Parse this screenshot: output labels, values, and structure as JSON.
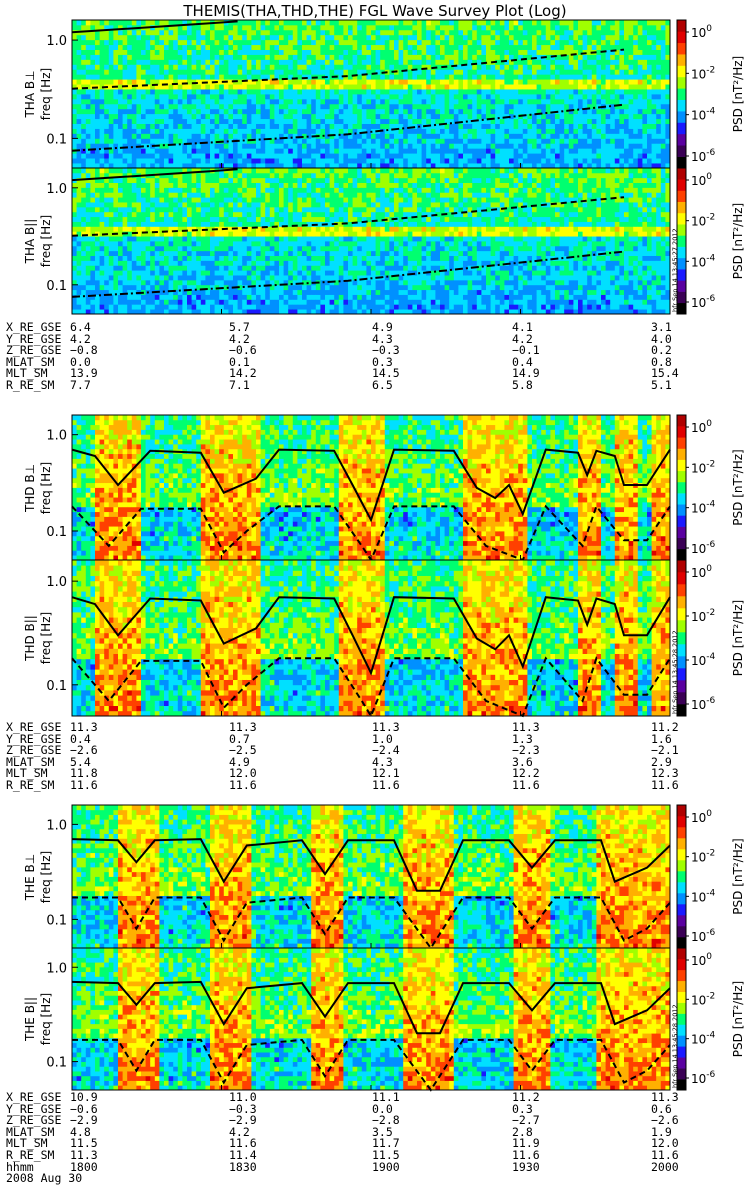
{
  "title": "THEMIS(THA,THD,THE) FGL Wave Survey Plot (Log)",
  "panels": [
    {
      "ylabel": "THA B⊥",
      "unit": "freq [Hz]",
      "probe": "THA",
      "kind": "perp"
    },
    {
      "ylabel": "THA B||",
      "unit": "freq [Hz]",
      "probe": "THA",
      "kind": "par"
    },
    {
      "ylabel": "THD B⊥",
      "unit": "freq [Hz]",
      "probe": "THD",
      "kind": "perp"
    },
    {
      "ylabel": "THD B||",
      "unit": "freq [Hz]",
      "probe": "THD",
      "kind": "par"
    },
    {
      "ylabel": "THE B⊥",
      "unit": "freq [Hz]",
      "probe": "THE",
      "kind": "perp"
    },
    {
      "ylabel": "THE B||",
      "unit": "freq [Hz]",
      "probe": "THE",
      "kind": "par"
    }
  ],
  "y_ticks": [
    "1.0",
    "0.1"
  ],
  "colorbar": {
    "label": "PSD [nT²/Hz]",
    "ticks": [
      "10⁰",
      "10⁻²",
      "10⁻⁴",
      "10⁻⁶"
    ],
    "colors": [
      "#000000",
      "#3a0055",
      "#5a00a0",
      "#1a1aff",
      "#0090ff",
      "#00e0ff",
      "#00ff70",
      "#a0ff00",
      "#ffff00",
      "#ffb000",
      "#ff4000",
      "#e00000",
      "#b00000"
    ]
  },
  "stamps": [
    "hfr Sep 14 13:45:27 2012",
    "hfr Sep 14 13:45:28 2012",
    "hfr Sep 14 13:45:28 2012"
  ],
  "ephemeris": [
    {
      "labels": [
        "X_RE_GSE",
        "Y_RE_GSE",
        "Z_RE_GSE",
        "MLAT_SM",
        "MLT_SM",
        "R_RE_SM"
      ],
      "values": [
        [
          "6.4",
          "5.7",
          "4.9",
          "4.1",
          "3.1"
        ],
        [
          "4.2",
          "4.2",
          "4.3",
          "4.2",
          "4.0"
        ],
        [
          "−0.8",
          "−0.6",
          "−0.3",
          "−0.1",
          "0.2"
        ],
        [
          "0.0",
          "0.1",
          "0.3",
          "0.4",
          "0.8"
        ],
        [
          "13.9",
          "14.2",
          "14.5",
          "14.9",
          "15.4"
        ],
        [
          "7.7",
          "7.1",
          "6.5",
          "5.8",
          "5.1"
        ]
      ]
    },
    {
      "labels": [
        "X_RE_GSE",
        "Y_RE_GSE",
        "Z_RE_GSE",
        "MLAT_SM",
        "MLT_SM",
        "R_RE_SM"
      ],
      "values": [
        [
          "11.3",
          "11.3",
          "11.3",
          "11.3",
          "11.2"
        ],
        [
          "0.4",
          "0.7",
          "1.0",
          "1.3",
          "1.6"
        ],
        [
          "−2.6",
          "−2.5",
          "−2.4",
          "−2.3",
          "−2.1"
        ],
        [
          "5.4",
          "4.9",
          "4.3",
          "3.6",
          "2.9"
        ],
        [
          "11.8",
          "12.0",
          "12.1",
          "12.2",
          "12.3"
        ],
        [
          "11.6",
          "11.6",
          "11.6",
          "11.6",
          "11.6"
        ]
      ]
    },
    {
      "labels": [
        "X_RE_GSE",
        "Y_RE_GSE",
        "Z_RE_GSE",
        "MLAT_SM",
        "MLT_SM",
        "R_RE_SM",
        "hhmm"
      ],
      "values": [
        [
          "10.9",
          "11.0",
          "11.1",
          "11.2",
          "11.3"
        ],
        [
          "−0.6",
          "−0.3",
          "0.0",
          "0.3",
          "0.6"
        ],
        [
          "−2.9",
          "−2.9",
          "−2.8",
          "−2.7",
          "−2.6"
        ],
        [
          "4.8",
          "4.2",
          "3.5",
          "2.8",
          "1.9"
        ],
        [
          "11.5",
          "11.6",
          "11.7",
          "11.9",
          "12.0"
        ],
        [
          "11.3",
          "11.4",
          "11.5",
          "11.6",
          "11.6"
        ],
        [
          "1800",
          "1830",
          "1900",
          "1930",
          "2000"
        ]
      ]
    }
  ],
  "date": "2008 Aug 30",
  "chart_data": {
    "type": "heatmap",
    "title": "THEMIS(THA,THD,THE) FGL Wave Survey Plot (Log)",
    "x": [
      "1800",
      "1830",
      "1900",
      "1930",
      "2000"
    ],
    "xlabel": "hhmm",
    "y_scale": "log",
    "ylim": [
      0.05,
      1.6
    ],
    "ylabel": "freq [Hz]",
    "colorbar_label": "PSD [nT²/Hz]",
    "colorbar_range": [
      1e-07,
      10
    ],
    "grid": false,
    "series": [
      {
        "panel": "THA B⊥",
        "gyro_freq_hz": [
          [
            0,
            1.2
          ],
          [
            30,
            1.48
          ],
          [
            36,
            1.55
          ]
        ],
        "half_gyro_hz": [
          [
            0,
            0.32
          ],
          [
            60,
            0.43
          ],
          [
            120,
            0.8
          ]
        ],
        "tenth_gyro_hz": [
          [
            0,
            0.075
          ],
          [
            60,
            0.11
          ],
          [
            120,
            0.22
          ]
        ]
      },
      {
        "panel": "THA B||",
        "gyro_freq_hz": [
          [
            0,
            1.2
          ],
          [
            30,
            1.48
          ],
          [
            36,
            1.55
          ]
        ],
        "half_gyro_hz": [
          [
            0,
            0.32
          ],
          [
            60,
            0.43
          ],
          [
            120,
            0.8
          ]
        ],
        "tenth_gyro_hz": [
          [
            0,
            0.075
          ],
          [
            60,
            0.11
          ],
          [
            120,
            0.22
          ]
        ]
      },
      {
        "panel": "THD B⊥",
        "gyro_freq_hz": [
          [
            0,
            0.7
          ],
          [
            5,
            0.6
          ],
          [
            10,
            0.3
          ],
          [
            17,
            0.68
          ],
          [
            28,
            0.65
          ],
          [
            33,
            0.25
          ],
          [
            40,
            0.35
          ],
          [
            45,
            0.7
          ],
          [
            57,
            0.68
          ],
          [
            61,
            0.3
          ],
          [
            65,
            0.13
          ],
          [
            70,
            0.7
          ],
          [
            83,
            0.68
          ],
          [
            88,
            0.28
          ],
          [
            92,
            0.22
          ],
          [
            95,
            0.3
          ],
          [
            98,
            0.15
          ],
          [
            103,
            0.7
          ],
          [
            110,
            0.65
          ],
          [
            112,
            0.38
          ],
          [
            114,
            0.68
          ],
          [
            118,
            0.6
          ],
          [
            120,
            0.3
          ],
          [
            125,
            0.3
          ],
          [
            130,
            0.7
          ]
        ],
        "half_gyro_hz": [
          [
            0,
            0.18
          ],
          [
            8,
            0.07
          ],
          [
            15,
            0.17
          ],
          [
            28,
            0.17
          ],
          [
            33,
            0.06
          ],
          [
            38,
            0.1
          ],
          [
            45,
            0.18
          ],
          [
            57,
            0.18
          ],
          [
            63,
            0.07
          ],
          [
            65,
            0.05
          ],
          [
            70,
            0.18
          ],
          [
            83,
            0.18
          ],
          [
            90,
            0.07
          ],
          [
            98,
            0.05
          ],
          [
            103,
            0.18
          ],
          [
            111,
            0.07
          ],
          [
            114,
            0.18
          ],
          [
            120,
            0.08
          ],
          [
            125,
            0.08
          ],
          [
            130,
            0.18
          ]
        ]
      },
      {
        "panel": "THD B||",
        "gyro_freq_hz": [
          [
            0,
            0.7
          ],
          [
            5,
            0.6
          ],
          [
            10,
            0.3
          ],
          [
            17,
            0.68
          ],
          [
            28,
            0.65
          ],
          [
            33,
            0.25
          ],
          [
            40,
            0.35
          ],
          [
            45,
            0.7
          ],
          [
            57,
            0.68
          ],
          [
            61,
            0.3
          ],
          [
            65,
            0.13
          ],
          [
            70,
            0.7
          ],
          [
            83,
            0.68
          ],
          [
            88,
            0.28
          ],
          [
            92,
            0.22
          ],
          [
            95,
            0.3
          ],
          [
            98,
            0.15
          ],
          [
            103,
            0.7
          ],
          [
            110,
            0.65
          ],
          [
            112,
            0.38
          ],
          [
            114,
            0.68
          ],
          [
            118,
            0.6
          ],
          [
            120,
            0.3
          ],
          [
            125,
            0.3
          ],
          [
            130,
            0.7
          ]
        ],
        "half_gyro_hz": [
          [
            0,
            0.18
          ],
          [
            8,
            0.07
          ],
          [
            15,
            0.17
          ],
          [
            28,
            0.17
          ],
          [
            33,
            0.06
          ],
          [
            38,
            0.1
          ],
          [
            45,
            0.18
          ],
          [
            57,
            0.18
          ],
          [
            63,
            0.07
          ],
          [
            65,
            0.05
          ],
          [
            70,
            0.18
          ],
          [
            83,
            0.18
          ],
          [
            90,
            0.07
          ],
          [
            98,
            0.05
          ],
          [
            103,
            0.18
          ],
          [
            111,
            0.07
          ],
          [
            114,
            0.18
          ],
          [
            120,
            0.08
          ],
          [
            125,
            0.08
          ],
          [
            130,
            0.18
          ]
        ]
      },
      {
        "panel": "THE B⊥",
        "gyro_freq_hz": [
          [
            0,
            0.7
          ],
          [
            10,
            0.68
          ],
          [
            14,
            0.4
          ],
          [
            18,
            0.68
          ],
          [
            28,
            0.7
          ],
          [
            33,
            0.25
          ],
          [
            38,
            0.6
          ],
          [
            50,
            0.68
          ],
          [
            55,
            0.3
          ],
          [
            60,
            0.68
          ],
          [
            70,
            0.68
          ],
          [
            75,
            0.2
          ],
          [
            80,
            0.2
          ],
          [
            85,
            0.68
          ],
          [
            95,
            0.68
          ],
          [
            100,
            0.35
          ],
          [
            105,
            0.68
          ],
          [
            115,
            0.68
          ],
          [
            118,
            0.25
          ],
          [
            125,
            0.35
          ],
          [
            130,
            0.6
          ]
        ],
        "half_gyro_hz": [
          [
            0,
            0.17
          ],
          [
            10,
            0.17
          ],
          [
            14,
            0.08
          ],
          [
            18,
            0.17
          ],
          [
            28,
            0.17
          ],
          [
            33,
            0.06
          ],
          [
            38,
            0.15
          ],
          [
            50,
            0.17
          ],
          [
            55,
            0.07
          ],
          [
            60,
            0.17
          ],
          [
            70,
            0.17
          ],
          [
            78,
            0.05
          ],
          [
            85,
            0.17
          ],
          [
            95,
            0.17
          ],
          [
            100,
            0.08
          ],
          [
            105,
            0.17
          ],
          [
            115,
            0.17
          ],
          [
            120,
            0.06
          ],
          [
            125,
            0.08
          ],
          [
            130,
            0.15
          ]
        ]
      },
      {
        "panel": "THE B||",
        "gyro_freq_hz": [
          [
            0,
            0.7
          ],
          [
            10,
            0.68
          ],
          [
            14,
            0.4
          ],
          [
            18,
            0.68
          ],
          [
            28,
            0.7
          ],
          [
            33,
            0.25
          ],
          [
            38,
            0.6
          ],
          [
            50,
            0.68
          ],
          [
            55,
            0.3
          ],
          [
            60,
            0.68
          ],
          [
            70,
            0.68
          ],
          [
            75,
            0.2
          ],
          [
            80,
            0.2
          ],
          [
            85,
            0.68
          ],
          [
            95,
            0.68
          ],
          [
            100,
            0.35
          ],
          [
            105,
            0.68
          ],
          [
            115,
            0.68
          ],
          [
            118,
            0.25
          ],
          [
            125,
            0.35
          ],
          [
            130,
            0.6
          ]
        ],
        "half_gyro_hz": [
          [
            0,
            0.17
          ],
          [
            10,
            0.17
          ],
          [
            14,
            0.08
          ],
          [
            18,
            0.17
          ],
          [
            28,
            0.17
          ],
          [
            33,
            0.06
          ],
          [
            38,
            0.15
          ],
          [
            50,
            0.17
          ],
          [
            55,
            0.07
          ],
          [
            60,
            0.17
          ],
          [
            70,
            0.17
          ],
          [
            78,
            0.05
          ],
          [
            85,
            0.17
          ],
          [
            95,
            0.17
          ],
          [
            100,
            0.08
          ],
          [
            105,
            0.17
          ],
          [
            115,
            0.17
          ],
          [
            120,
            0.06
          ],
          [
            125,
            0.08
          ],
          [
            130,
            0.15
          ]
        ]
      }
    ]
  }
}
